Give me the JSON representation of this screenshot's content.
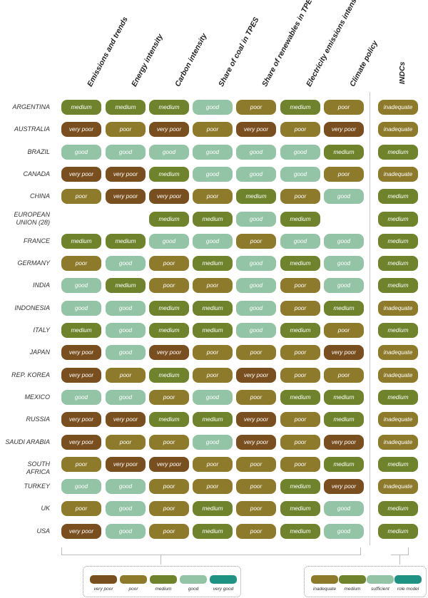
{
  "chart_data": {
    "type": "table",
    "columns": [
      "Emissions and trends",
      "Energy intensity",
      "Carbon intensity",
      "Share of coal in TPES",
      "Share of renewables in TPES",
      "Electricity emissions intensity",
      "Climate policy",
      "INDCs"
    ],
    "rows": [
      {
        "country": "ARGENTINA",
        "ratings": [
          "medium",
          "medium",
          "medium",
          "good",
          "poor",
          "medium",
          "poor",
          "inadequate"
        ]
      },
      {
        "country": "AUSTRALIA",
        "ratings": [
          "very poor",
          "poor",
          "very poor",
          "poor",
          "very poor",
          "poor",
          "very poor",
          "inadequate"
        ]
      },
      {
        "country": "BRAZIL",
        "ratings": [
          "good",
          "good",
          "good",
          "good",
          "good",
          "good",
          "medium",
          "medium"
        ]
      },
      {
        "country": "CANADA",
        "ratings": [
          "very poor",
          "very poor",
          "medium",
          "good",
          "good",
          "good",
          "poor",
          "inadequate"
        ]
      },
      {
        "country": "CHINA",
        "ratings": [
          "poor",
          "very poor",
          "very poor",
          "poor",
          "medium",
          "poor",
          "good",
          "medium"
        ]
      },
      {
        "country": "EUROPEAN UNION (28)",
        "ratings": [
          null,
          null,
          "medium",
          "medium",
          "good",
          "medium",
          null,
          "medium"
        ]
      },
      {
        "country": "FRANCE",
        "ratings": [
          "medium",
          "medium",
          "good",
          "good",
          "poor",
          "good",
          "good",
          "medium"
        ]
      },
      {
        "country": "GERMANY",
        "ratings": [
          "poor",
          "good",
          "poor",
          "medium",
          "good",
          "medium",
          "good",
          "medium"
        ]
      },
      {
        "country": "INDIA",
        "ratings": [
          "good",
          "medium",
          "poor",
          "poor",
          "good",
          "poor",
          "good",
          "medium"
        ]
      },
      {
        "country": "INDONESIA",
        "ratings": [
          "good",
          "good",
          "medium",
          "medium",
          "good",
          "poor",
          "medium",
          "inadequate"
        ]
      },
      {
        "country": "ITALY",
        "ratings": [
          "medium",
          "good",
          "medium",
          "medium",
          "good",
          "medium",
          "poor",
          "medium"
        ]
      },
      {
        "country": "JAPAN",
        "ratings": [
          "very poor",
          "good",
          "very poor",
          "poor",
          "poor",
          "poor",
          "very poor",
          "inadequate"
        ]
      },
      {
        "country": "REP. KOREA",
        "ratings": [
          "very poor",
          "poor",
          "medium",
          "poor",
          "very poor",
          "poor",
          "poor",
          "inadequate"
        ]
      },
      {
        "country": "MEXICO",
        "ratings": [
          "good",
          "good",
          "poor",
          "good",
          "poor",
          "medium",
          "medium",
          "medium"
        ]
      },
      {
        "country": "RUSSIA",
        "ratings": [
          "very poor",
          "very poor",
          "medium",
          "medium",
          "very poor",
          "poor",
          "medium",
          "inadequate"
        ]
      },
      {
        "country": "SAUDI ARABIA",
        "ratings": [
          "very poor",
          "poor",
          "poor",
          "good",
          "very poor",
          "poor",
          "very poor",
          "inadequate"
        ]
      },
      {
        "country": "SOUTH AFRICA",
        "ratings": [
          "poor",
          "very poor",
          "very poor",
          "poor",
          "poor",
          "poor",
          "medium",
          "medium"
        ]
      },
      {
        "country": "TURKEY",
        "ratings": [
          "good",
          "good",
          "poor",
          "poor",
          "poor",
          "medium",
          "very poor",
          "inadequate"
        ]
      },
      {
        "country": "UK",
        "ratings": [
          "poor",
          "good",
          "poor",
          "medium",
          "poor",
          "medium",
          "good",
          "medium"
        ]
      },
      {
        "country": "USA",
        "ratings": [
          "very poor",
          "good",
          "poor",
          "medium",
          "poor",
          "medium",
          "good",
          "medium"
        ]
      }
    ],
    "legend_performance": [
      "very poor",
      "poor",
      "medium",
      "good",
      "very good"
    ],
    "legend_indc": [
      "inadequate",
      "medium",
      "sufficient",
      "role model"
    ]
  },
  "colors": {
    "very poor": "#7a4f1f",
    "poor": "#8e7a2b",
    "medium": "#6f832c",
    "good": "#94c4a6",
    "very good": "#1e9384",
    "inadequate": "#8e7a2b",
    "sufficient": "#94c4a6",
    "role model": "#1e9384"
  }
}
